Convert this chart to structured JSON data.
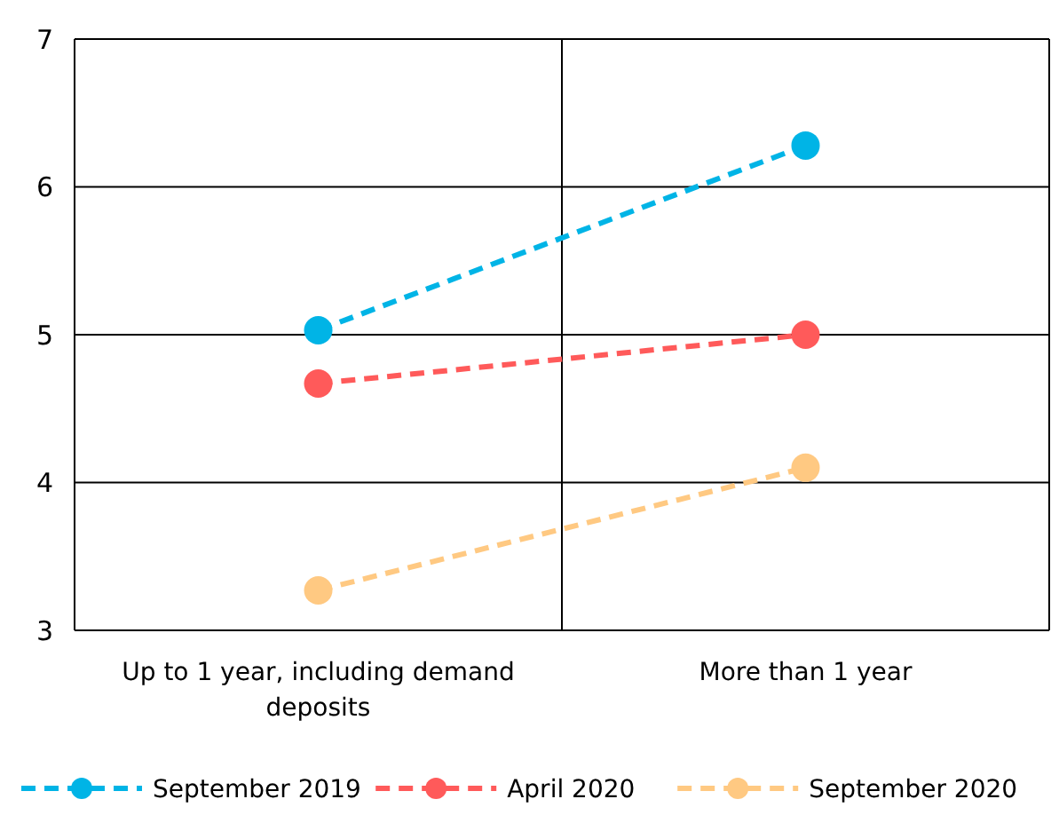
{
  "chart_data": {
    "type": "line",
    "categories": [
      "Up to 1 year, including demand deposits",
      "More than 1 year"
    ],
    "series": [
      {
        "name": "September 2019",
        "color": "#00b4e6",
        "values": [
          5.03,
          6.28
        ]
      },
      {
        "name": "April 2020",
        "color": "#ff5a5a",
        "values": [
          4.67,
          5.0
        ]
      },
      {
        "name": "September 2020",
        "color": "#ffc982",
        "values": [
          3.27,
          4.1
        ]
      }
    ],
    "ylim": [
      3,
      7
    ],
    "yticks": [
      3,
      4,
      5,
      6,
      7
    ],
    "grid": true,
    "legend": "bottom",
    "marker": "circle",
    "line_style": "dashed"
  }
}
